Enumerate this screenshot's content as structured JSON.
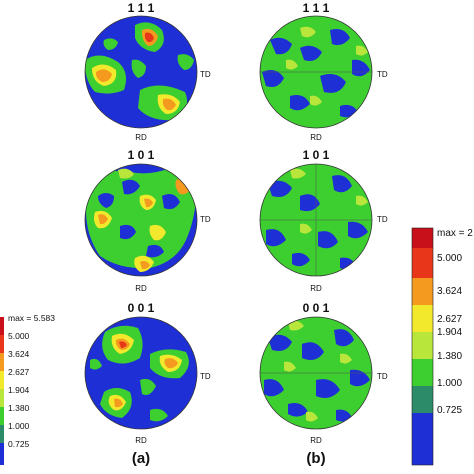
{
  "figure": {
    "panels": [
      {
        "label": "(a)",
        "plots": [
          {
            "title": "1 1 1",
            "axis_right": "TD",
            "axis_bottom": "RD"
          },
          {
            "title": "1 0 1",
            "axis_right": "TD",
            "axis_bottom": "RD"
          },
          {
            "title": "0 0 1",
            "axis_right": "TD",
            "axis_bottom": "RD"
          }
        ],
        "colorbar": {
          "max_label": "max = 5.583",
          "levels": [
            "5.000",
            "3.624",
            "2.627",
            "1.904",
            "1.380",
            "1.000",
            "0.725"
          ]
        }
      },
      {
        "label": "(b)",
        "plots": [
          {
            "title": "1 1 1",
            "axis_right": "TD",
            "axis_bottom": "RD"
          },
          {
            "title": "1 0 1",
            "axis_right": "TD",
            "axis_bottom": "RD"
          },
          {
            "title": "0 0 1",
            "axis_right": "TD",
            "axis_bottom": "RD"
          }
        ],
        "colorbar": {
          "max_label": "max = 2",
          "levels": [
            "5.000",
            "3.624",
            "2.627",
            "1.904",
            "1.380",
            "1.000",
            "0.725"
          ]
        }
      }
    ],
    "colors": {
      "blue": "#1f2fd6",
      "green": "#3ccf2f",
      "yellow_green": "#b8e63a",
      "yellow": "#f2e82c",
      "orange": "#f39a1f",
      "red": "#e8361b",
      "teal": "#2c8c6a",
      "dark_red": "#c8101a"
    }
  }
}
